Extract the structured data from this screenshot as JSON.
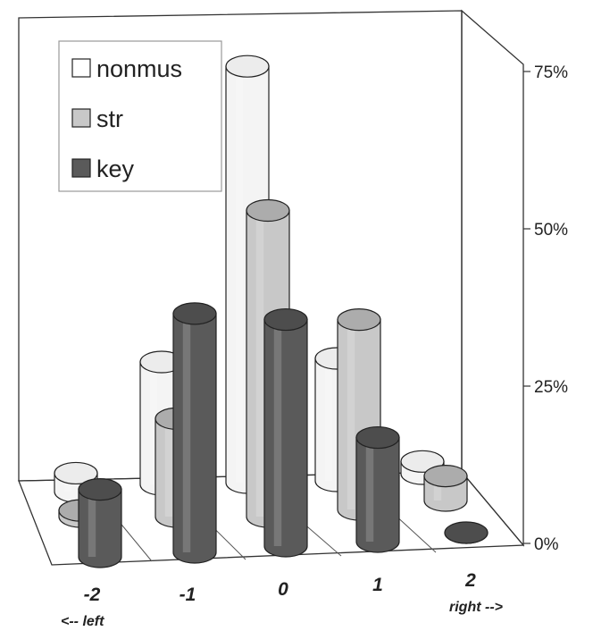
{
  "chart_data": {
    "type": "bar",
    "style": "3d-cylinder",
    "categories": [
      "-2",
      "-1",
      "0",
      "1",
      "2"
    ],
    "x_notes": {
      "left": "<-- left",
      "right": "right -->"
    },
    "ylim": [
      0,
      75
    ],
    "y_ticks": [
      "0%",
      "25%",
      "50%",
      "75%"
    ],
    "series": [
      {
        "name": "nonmus",
        "color": "#ffffff",
        "values": [
          3,
          20,
          68,
          20,
          2
        ]
      },
      {
        "name": "str",
        "color": "#c8c8c8",
        "values": [
          1,
          16,
          50,
          31,
          4
        ]
      },
      {
        "name": "key",
        "color": "#5a5a5a",
        "values": [
          11,
          39,
          37,
          17,
          0
        ]
      }
    ],
    "legend": {
      "placement": "top-left"
    },
    "grid": false
  }
}
